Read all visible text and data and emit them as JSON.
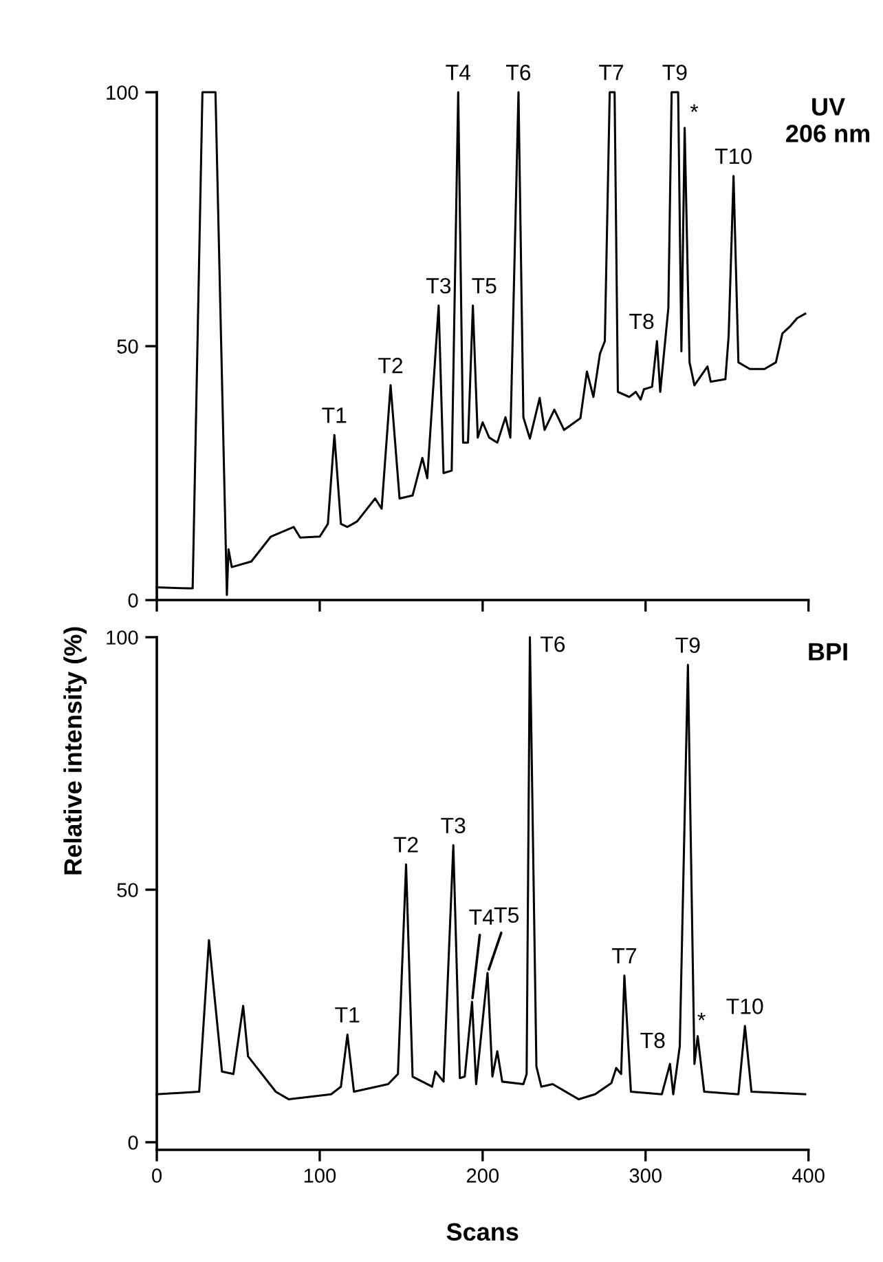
{
  "chart_data": [
    {
      "type": "line",
      "title": "UV\n206 nm",
      "series": [
        {
          "color": "#000000",
          "x": [
            0,
            20,
            22,
            28,
            36,
            43,
            44,
            46,
            58,
            70,
            84,
            88,
            100,
            105,
            109,
            113,
            117,
            123,
            134,
            138,
            143.5,
            149,
            157,
            163,
            166,
            173,
            176,
            181,
            185,
            188,
            191,
            194,
            197,
            200,
            204,
            209,
            214,
            217,
            222,
            225,
            229,
            235,
            238,
            244,
            250,
            260,
            264,
            268,
            272,
            275,
            278,
            281,
            283,
            290,
            294,
            297,
            299,
            304,
            307,
            309,
            314,
            316,
            320,
            322,
            324,
            327,
            330,
            338,
            340,
            349,
            351,
            354,
            357,
            364,
            373,
            380,
            384,
            389,
            393,
            398
          ],
          "values": [
            2.5,
            2.3,
            2.3,
            100,
            100,
            1,
            10,
            6.5,
            7.6,
            12.5,
            14.4,
            12.3,
            12.5,
            15,
            32.5,
            15,
            14.4,
            15.5,
            20,
            18,
            42.3,
            20,
            20.6,
            28,
            24,
            58,
            25,
            25.5,
            100,
            31,
            31,
            58,
            32,
            35,
            32,
            31,
            36,
            32,
            100,
            36,
            31.8,
            39.8,
            33.5,
            37.5,
            33.5,
            35.8,
            45,
            40,
            48.5,
            51,
            100,
            100,
            41,
            40,
            41,
            39.5,
            41.5,
            42,
            51,
            41,
            57.5,
            100,
            100,
            49,
            93,
            46.8,
            42.3,
            46,
            43,
            43.5,
            52,
            83.5,
            46.8,
            45.5,
            45.5,
            46.8,
            52.5,
            54,
            55.5,
            56.4
          ]
        }
      ],
      "xlim": [
        0,
        400
      ],
      "xticks": [
        0,
        100,
        200,
        300,
        400
      ],
      "ylim": [
        0,
        100
      ],
      "yticks": [
        0,
        50,
        100
      ],
      "tick_labels": "y",
      "grid": false,
      "legend": false,
      "marker": "none",
      "line_style": "solid",
      "annotations": [
        {
          "text": "T1",
          "x": 109,
          "y": 32.5
        },
        {
          "text": "T2",
          "x": 143.5,
          "y": 42.3
        },
        {
          "text": "T3",
          "x": 173,
          "y": 58
        },
        {
          "text": "T4",
          "x": 185,
          "y": 100
        },
        {
          "text": "T5",
          "x": 194,
          "y": 58
        },
        {
          "text": "T6",
          "x": 222,
          "y": 100
        },
        {
          "text": "T7",
          "x": 279,
          "y": 100
        },
        {
          "text": "T8",
          "x": 307,
          "y": 51
        },
        {
          "text": "T9",
          "x": 318,
          "y": 100
        },
        {
          "text": "*",
          "x": 324,
          "y": 93
        },
        {
          "text": "T10",
          "x": 354,
          "y": 83.5
        }
      ]
    },
    {
      "type": "line",
      "title": "BPI",
      "xlabel": "Scans",
      "ylabel": "Relative intensity (%)",
      "series": [
        {
          "color": "#000000",
          "x": [
            0,
            26,
            32,
            40,
            47,
            53,
            56,
            73,
            81,
            107,
            113,
            117,
            121,
            142,
            148,
            153,
            157,
            169,
            171,
            176,
            182,
            186,
            189,
            193.5,
            196,
            203,
            206,
            209,
            212,
            225,
            227,
            229,
            233,
            236,
            243,
            259,
            269,
            279,
            282,
            285,
            287,
            291,
            310,
            315,
            317,
            321,
            326,
            330,
            332,
            336,
            357,
            361,
            365,
            398
          ],
          "values": [
            9.5,
            10,
            40,
            14,
            13.5,
            27,
            17,
            10,
            8.5,
            9.5,
            11,
            21.3,
            10,
            11.5,
            13.5,
            55,
            13,
            11,
            14,
            12,
            58.8,
            12.7,
            13,
            27.8,
            11.5,
            33.5,
            13,
            18,
            12,
            11.5,
            13.5,
            100,
            15,
            11,
            11.5,
            8.5,
            9.5,
            11.7,
            14.7,
            13.5,
            33,
            10,
            9.5,
            15.5,
            9.5,
            19,
            94.5,
            15.5,
            21,
            10,
            9.5,
            23,
            10,
            9.5
          ]
        }
      ],
      "xlim": [
        0,
        400
      ],
      "xticks": [
        0,
        100,
        200,
        300,
        400
      ],
      "ylim": [
        -1.5,
        100
      ],
      "yticks": [
        0,
        50,
        100
      ],
      "grid": false,
      "legend": false,
      "marker": "none",
      "line_style": "solid",
      "annotations": [
        {
          "text": "T1",
          "x": 117,
          "y": 21.3
        },
        {
          "text": "T2",
          "x": 153,
          "y": 55
        },
        {
          "text": "T3",
          "x": 182,
          "y": 58.8
        },
        {
          "text": "T4",
          "x": 193.5,
          "y": 27.8
        },
        {
          "text": "T5",
          "x": 203,
          "y": 33.5
        },
        {
          "text": "T6",
          "x": 229,
          "y": 100
        },
        {
          "text": "T7",
          "x": 287,
          "y": 33
        },
        {
          "text": "T8",
          "x": 315,
          "y": 15.5
        },
        {
          "text": "T9",
          "x": 326,
          "y": 94.5
        },
        {
          "text": "*",
          "x": 332,
          "y": 21
        },
        {
          "text": "T10",
          "x": 361,
          "y": 23
        }
      ]
    }
  ]
}
